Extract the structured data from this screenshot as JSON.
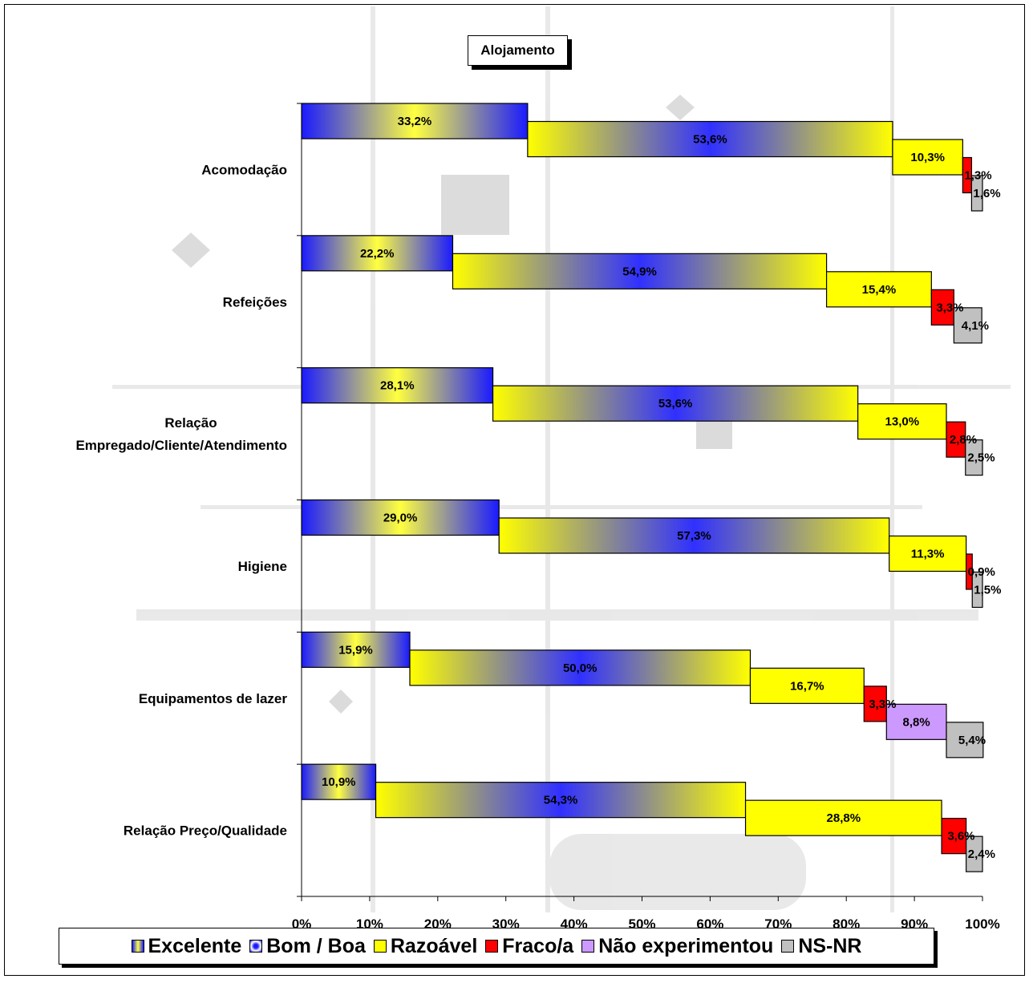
{
  "chart_data": {
    "type": "bar",
    "stacked": "100%",
    "orientation": "horizontal",
    "title": "Alojamento",
    "categories": [
      "Acomodação",
      "Refeições",
      "Relação\nEmpregado/Cliente/Atendimento",
      "Higiene",
      "Equipamentos de lazer",
      "Relação Preço/Qualidade"
    ],
    "series": [
      {
        "name": "Excelente",
        "color": "#2b2bff",
        "values": [
          33.2,
          22.2,
          28.1,
          29.0,
          15.9,
          10.9
        ],
        "labels": [
          "33,2%",
          "22,2%",
          "28,1%",
          "29,0%",
          "15,9%",
          "10,9%"
        ]
      },
      {
        "name": "Bom / Boa",
        "color": "#ffff00",
        "values": [
          53.6,
          54.9,
          53.6,
          57.3,
          50.0,
          54.3
        ],
        "labels": [
          "53,6%",
          "54,9%",
          "53,6%",
          "57,3%",
          "50,0%",
          "54,3%"
        ]
      },
      {
        "name": "Razoável",
        "color": "#ffff00",
        "values": [
          10.3,
          15.4,
          13.0,
          11.3,
          16.7,
          28.8
        ],
        "labels": [
          "10,3%",
          "15,4%",
          "13,0%",
          "11,3%",
          "16,7%",
          "28,8%"
        ]
      },
      {
        "name": "Fraco/a",
        "color": "#ff0000",
        "values": [
          1.3,
          3.3,
          2.8,
          0.9,
          3.3,
          3.6
        ],
        "labels": [
          "1,3%",
          "3,3%",
          "2,8%",
          "0,9%",
          "3,3%",
          "3,6%"
        ]
      },
      {
        "name": "Não experimentou",
        "color": "#cc99ff",
        "values": [
          0,
          0,
          0,
          0,
          8.8,
          0
        ],
        "labels": [
          "",
          "",
          "",
          "",
          "8,8%",
          ""
        ]
      },
      {
        "name": "NS-NR",
        "color": "#c0c0c0",
        "values": [
          1.6,
          4.1,
          2.5,
          1.5,
          5.4,
          2.4
        ],
        "labels": [
          "1,6%",
          "4,1%",
          "2,5%",
          "1,5%",
          "5,4%",
          "2,4%"
        ]
      }
    ],
    "xlim": [
      0,
      100
    ],
    "x_ticks": [
      "0%",
      "10%",
      "20%",
      "30%",
      "40%",
      "50%",
      "60%",
      "70%",
      "80%",
      "90%",
      "100%"
    ],
    "legend_position": "bottom",
    "grid": false
  }
}
